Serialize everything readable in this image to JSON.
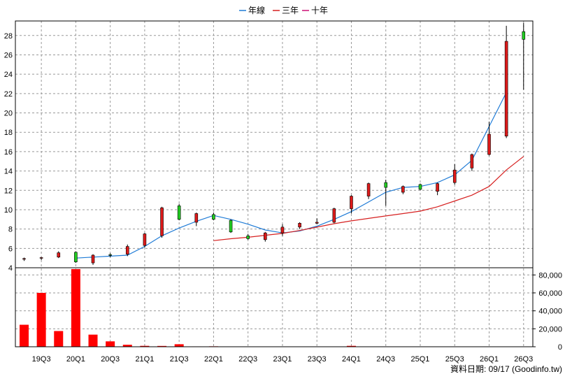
{
  "legend": {
    "items": [
      {
        "label": "年線",
        "color": "#1f7bd6"
      },
      {
        "label": "三年",
        "color": "#d62020"
      },
      {
        "label": "十年",
        "color": "#cc1177"
      }
    ]
  },
  "footer": {
    "source": "資料日期: 09/17  (Goodinfo.tw)"
  },
  "colors": {
    "up": "#dd1a1a",
    "down": "#22cc22",
    "volume": "#ff0000",
    "grid": "#999999",
    "frame": "#000000"
  },
  "chart_data": [
    {
      "type": "candlestick",
      "ylim": [
        4,
        29.5
      ],
      "yticks": [
        4,
        6,
        8,
        10,
        12,
        14,
        16,
        18,
        20,
        22,
        24,
        26,
        28
      ],
      "grid": true,
      "legend_position": "top-center",
      "x_tick_labels": [
        "19Q3",
        "20Q1",
        "20Q3",
        "21Q1",
        "21Q3",
        "22Q1",
        "22Q3",
        "23Q1",
        "23Q3",
        "24Q1",
        "24Q3",
        "25Q1",
        "25Q3",
        "26Q1",
        "26Q3"
      ],
      "candles": [
        {
          "o": 4.95,
          "h": 5.05,
          "l": 4.7,
          "c": 4.95
        },
        {
          "o": 5.0,
          "h": 5.1,
          "l": 4.8,
          "c": 5.05
        },
        {
          "o": 5.1,
          "h": 5.7,
          "l": 5.0,
          "c": 5.55
        },
        {
          "o": 5.6,
          "h": 5.7,
          "l": 4.5,
          "c": 4.6
        },
        {
          "o": 4.5,
          "h": 5.4,
          "l": 4.3,
          "c": 5.3
        },
        {
          "o": 5.35,
          "h": 5.5,
          "l": 5.1,
          "c": 5.3
        },
        {
          "o": 5.4,
          "h": 6.4,
          "l": 5.2,
          "c": 6.2
        },
        {
          "o": 6.3,
          "h": 7.6,
          "l": 6.1,
          "c": 7.5
        },
        {
          "o": 7.3,
          "h": 10.3,
          "l": 7.1,
          "c": 10.2
        },
        {
          "o": 10.4,
          "h": 10.6,
          "l": 8.9,
          "c": 9.0
        },
        {
          "o": 8.7,
          "h": 9.7,
          "l": 8.3,
          "c": 9.6
        },
        {
          "o": 9.5,
          "h": 9.7,
          "l": 8.9,
          "c": 9.0
        },
        {
          "o": 8.9,
          "h": 9.0,
          "l": 7.6,
          "c": 7.7
        },
        {
          "o": 7.3,
          "h": 7.5,
          "l": 6.9,
          "c": 7.0
        },
        {
          "o": 6.9,
          "h": 7.7,
          "l": 6.7,
          "c": 7.6
        },
        {
          "o": 7.6,
          "h": 8.5,
          "l": 7.3,
          "c": 8.2
        },
        {
          "o": 8.2,
          "h": 8.7,
          "l": 8.0,
          "c": 8.6
        },
        {
          "o": 8.6,
          "h": 9.1,
          "l": 8.5,
          "c": 8.7
        },
        {
          "o": 8.7,
          "h": 10.2,
          "l": 8.6,
          "c": 10.1
        },
        {
          "o": 10.1,
          "h": 11.5,
          "l": 9.6,
          "c": 11.4
        },
        {
          "o": 11.4,
          "h": 12.8,
          "l": 11.1,
          "c": 12.7
        },
        {
          "o": 12.8,
          "h": 13.1,
          "l": 10.4,
          "c": 12.3
        },
        {
          "o": 11.8,
          "h": 12.5,
          "l": 11.6,
          "c": 12.4
        },
        {
          "o": 12.6,
          "h": 12.7,
          "l": 12.0,
          "c": 12.1
        },
        {
          "o": 11.9,
          "h": 12.8,
          "l": 11.5,
          "c": 12.7
        },
        {
          "o": 12.8,
          "h": 14.7,
          "l": 12.6,
          "c": 14.1
        },
        {
          "o": 14.3,
          "h": 15.8,
          "l": 14.0,
          "c": 15.7
        },
        {
          "o": 15.7,
          "h": 19.1,
          "l": 15.6,
          "c": 17.8
        },
        {
          "o": 17.6,
          "h": 29.0,
          "l": 17.4,
          "c": 27.4
        },
        {
          "o": 28.4,
          "h": 29.3,
          "l": 22.4,
          "c": 27.6
        }
      ],
      "series": [
        {
          "name": "年線",
          "start_index": 3,
          "values": [
            5.0,
            5.1,
            5.2,
            5.3,
            6.2,
            7.3,
            8.1,
            8.8,
            9.4,
            9.0,
            8.5,
            7.9,
            7.6,
            7.8,
            8.3,
            9.0,
            9.8,
            10.8,
            11.8,
            12.3,
            12.4,
            12.8,
            13.6,
            15.1,
            18.6,
            22.1
          ]
        },
        {
          "name": "三年",
          "start_index": 11,
          "values": [
            6.8,
            7.0,
            7.15,
            7.35,
            7.55,
            7.85,
            8.2,
            8.55,
            8.85,
            9.1,
            9.35,
            9.6,
            9.85,
            10.3,
            10.9,
            11.5,
            12.4,
            14.1,
            15.5
          ]
        }
      ]
    },
    {
      "type": "bar",
      "ylim": [
        0,
        88000
      ],
      "yticks": [
        0,
        20000,
        40000,
        60000,
        80000
      ],
      "ytick_labels": [
        "0",
        "20,000",
        "40,000",
        "60,000",
        "80,000"
      ],
      "values": [
        24500,
        60000,
        17500,
        86500,
        13500,
        6000,
        2200,
        1000,
        900,
        2800,
        400,
        500,
        0,
        0,
        0,
        0,
        0,
        300,
        0,
        1000,
        0,
        0,
        0,
        0,
        0,
        0,
        0,
        0,
        0,
        0
      ]
    }
  ]
}
